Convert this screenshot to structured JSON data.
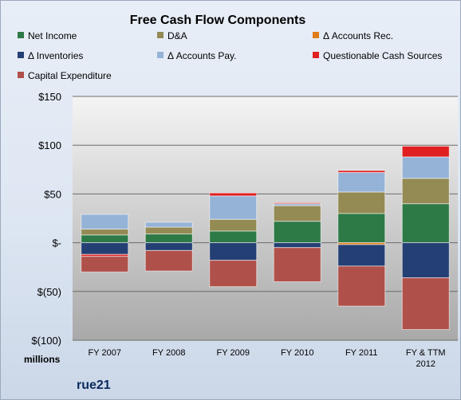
{
  "chart_data": {
    "type": "bar",
    "stacked": true,
    "title": "Free Cash Flow Components",
    "unit_label": "millions",
    "brand": "rue21",
    "categories": [
      "FY 2007",
      "FY 2008",
      "FY 2009",
      "FY 2010",
      "FY 2011",
      "FY & TTM|2012"
    ],
    "ylim": [
      -100,
      150
    ],
    "yticks": [
      {
        "value": 150,
        "label": "$150"
      },
      {
        "value": 100,
        "label": "$100"
      },
      {
        "value": 50,
        "label": "$50"
      },
      {
        "value": 0,
        "label": "$-"
      },
      {
        "value": -50,
        "label": "$(50)"
      },
      {
        "value": -100,
        "label": "$(100)"
      }
    ],
    "series": [
      {
        "name": "Net Income",
        "color": "#2d7a46",
        "values": [
          8,
          9,
          12,
          22,
          30,
          40
        ]
      },
      {
        "name": "D&A",
        "color": "#948a54",
        "values": [
          6,
          7,
          12,
          16,
          22,
          26
        ]
      },
      {
        "name": "Δ Accounts Rec.",
        "color": "#e07b1a",
        "values": [
          0,
          0,
          0,
          0,
          -2,
          0
        ]
      },
      {
        "name": "Δ Inventories",
        "color": "#243f73",
        "values": [
          -12,
          -8,
          -18,
          -5,
          -22,
          -36
        ]
      },
      {
        "name": "Δ Accounts Pay.",
        "color": "#95b3d7",
        "values": [
          15,
          5,
          24,
          2,
          20,
          22
        ]
      },
      {
        "name": "Questionable Cash Sources",
        "color": "#e02020",
        "values": [
          -2,
          0,
          3,
          1,
          2,
          11
        ]
      },
      {
        "name": "Capital Expenditure",
        "color": "#b0504a",
        "values": [
          -16,
          -21,
          -27,
          -35,
          -41,
          -53
        ]
      }
    ]
  }
}
